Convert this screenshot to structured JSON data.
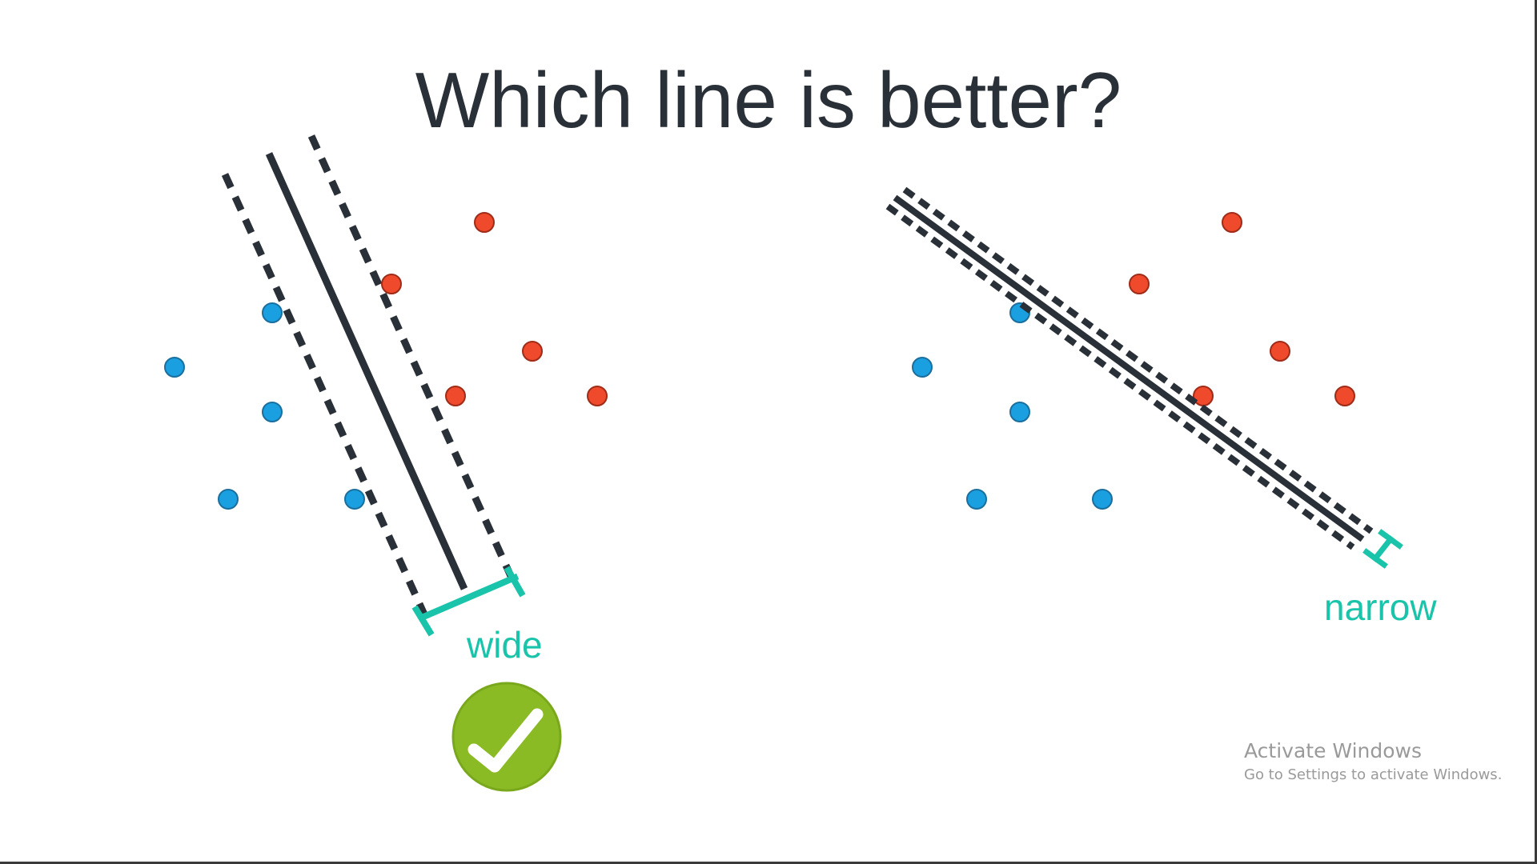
{
  "slide": {
    "title": "Which line is better?"
  },
  "panels": {
    "left": {
      "margin_label": "wide",
      "verdict_icon": "checkmark-icon"
    },
    "right": {
      "margin_label": "narrow"
    }
  },
  "colors": {
    "blue_point": "#1aa0e0",
    "red_point": "#f04a2c",
    "line": "#2a3038",
    "margin_label": "#19c4aa",
    "check_badge": "#8bbb24"
  },
  "watermark": {
    "title": "Activate Windows",
    "subtitle": "Go to Settings to activate Windows."
  }
}
